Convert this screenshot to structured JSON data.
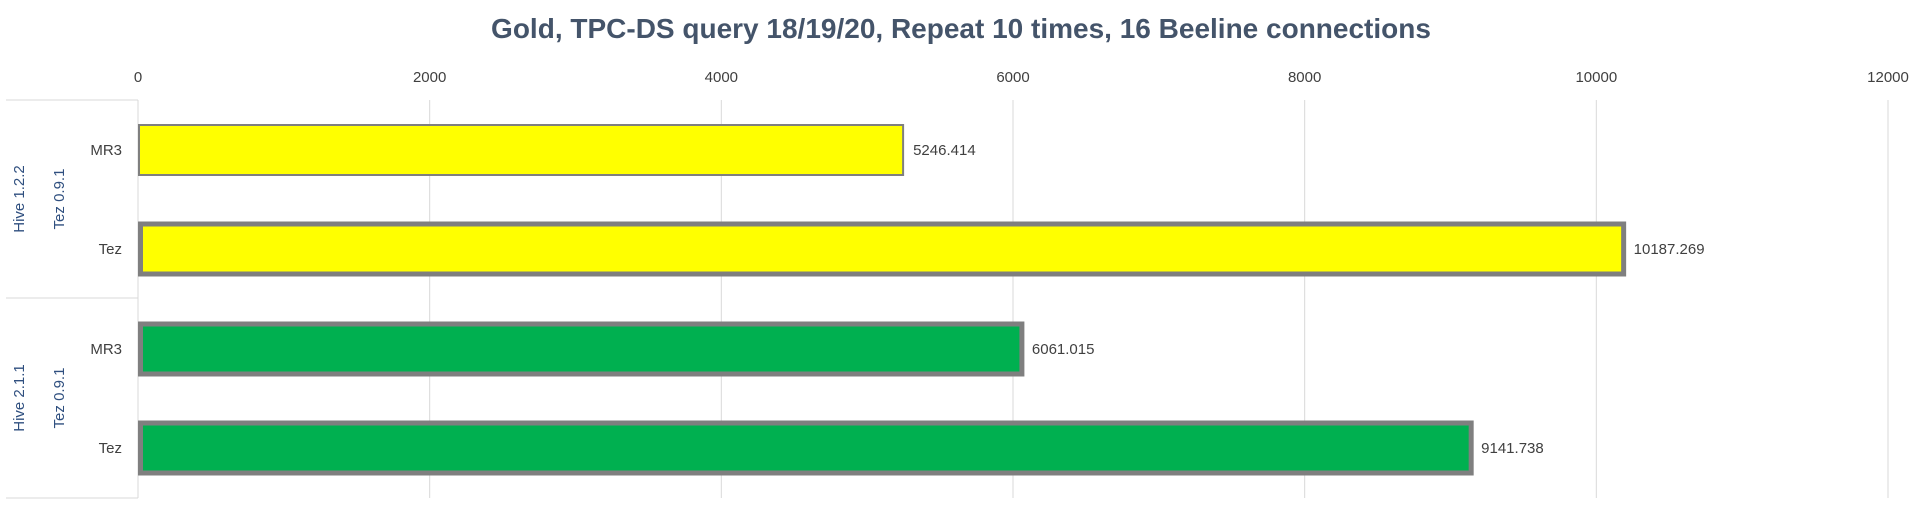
{
  "chart_data": {
    "type": "bar",
    "orientation": "horizontal",
    "title": "Gold, TPC-DS query 18/19/20, Repeat 10 times, 16 Beeline connections",
    "xlim": [
      0,
      12000
    ],
    "xticks": [
      "0",
      "2000",
      "4000",
      "6000",
      "8000",
      "10000",
      "12000"
    ],
    "x_axis_position": "top",
    "grid": true,
    "legend": "none",
    "groups": [
      {
        "outer_label": "Hive 1.2.2",
        "inner_label": "Tez 0.9.1",
        "color": "#ffff00",
        "bars": [
          {
            "label": "MR3",
            "value": 5246.414,
            "value_label": "5246.414",
            "border": "thin"
          },
          {
            "label": "Tez",
            "value": 10187.269,
            "value_label": "10187.269",
            "border": "thick"
          }
        ]
      },
      {
        "outer_label": "Hive 2.1.1",
        "inner_label": "Tez 0.9.1",
        "color": "#00b050",
        "bars": [
          {
            "label": "MR3",
            "value": 6061.015,
            "value_label": "6061.015",
            "border": "thick"
          },
          {
            "label": "Tez",
            "value": 9141.738,
            "value_label": "9141.738",
            "border": "thick"
          }
        ]
      }
    ]
  },
  "colors": {
    "title": "#44546a",
    "grid": "#d9d9d9",
    "bar_border": "#7f7f7f",
    "group_text": "#2f4f7f"
  }
}
